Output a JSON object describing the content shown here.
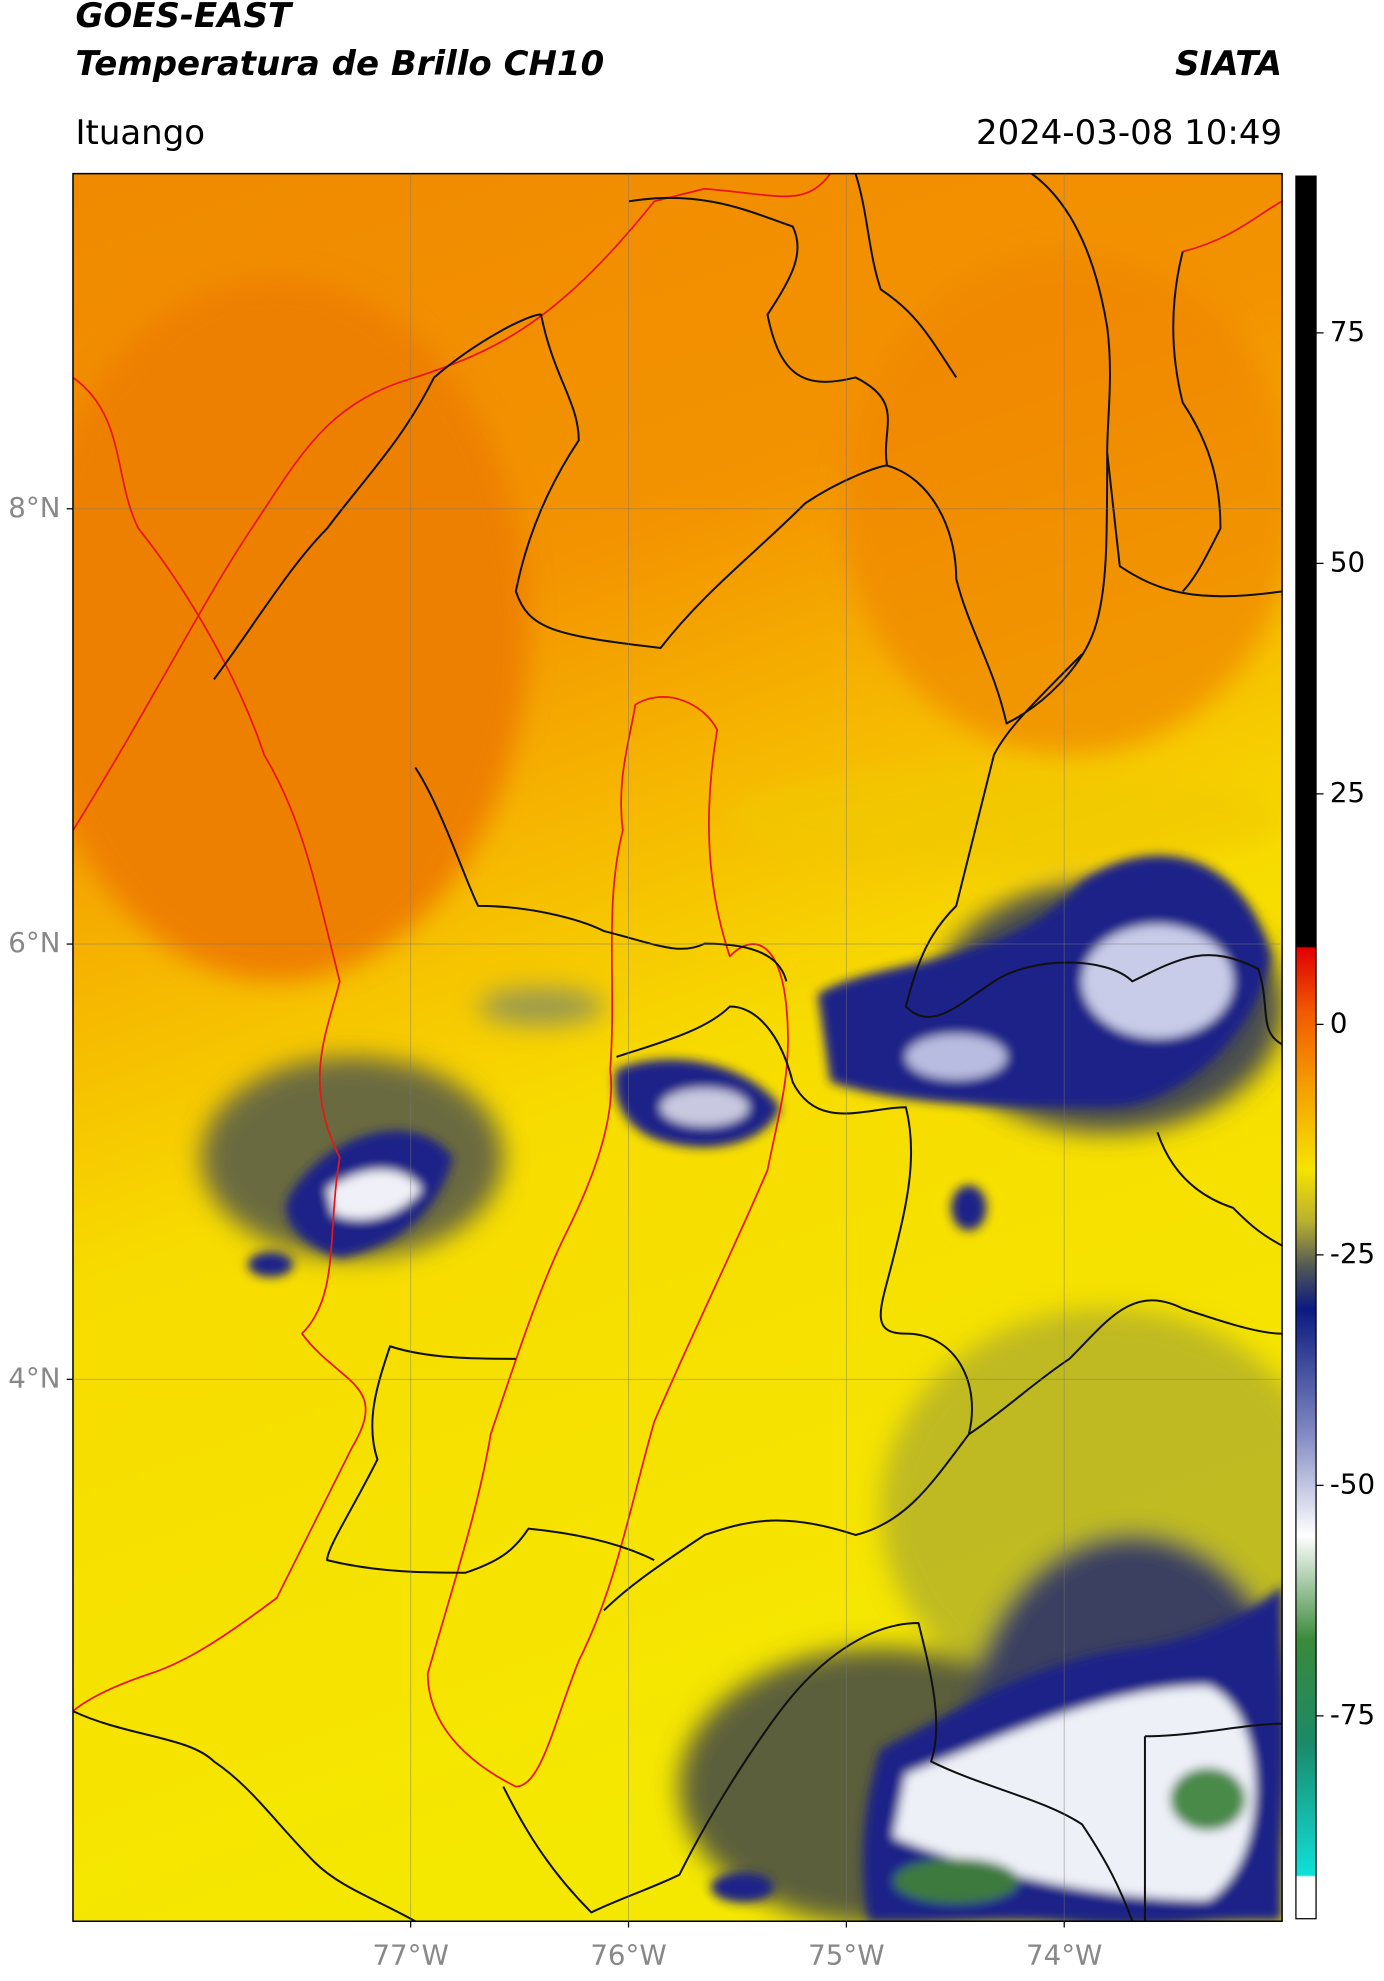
{
  "chart_data": {
    "type": "map",
    "title": "GOES-EAST",
    "subtitle": "Temperatura de Brillo CH10",
    "credit": "SIATA",
    "location": "Ituango",
    "timestamp": "2024-03-08 10:49",
    "xlim": [
      -78.55,
      -73.0
    ],
    "ylim": [
      1.51,
      9.54
    ],
    "xticks": [
      {
        "value": -77,
        "label": "77°W"
      },
      {
        "value": -76,
        "label": "76°W"
      },
      {
        "value": -75,
        "label": "75°W"
      },
      {
        "value": -74,
        "label": "74°W"
      }
    ],
    "yticks": [
      {
        "value": 4,
        "label": "4°N"
      },
      {
        "value": 6,
        "label": "6°N"
      },
      {
        "value": 8,
        "label": "8°N"
      }
    ],
    "grid": true,
    "colorbar": {
      "lim": [
        -97,
        92
      ],
      "ticks": [
        -75,
        -50,
        -25,
        0,
        25,
        50,
        75
      ]
    }
  }
}
